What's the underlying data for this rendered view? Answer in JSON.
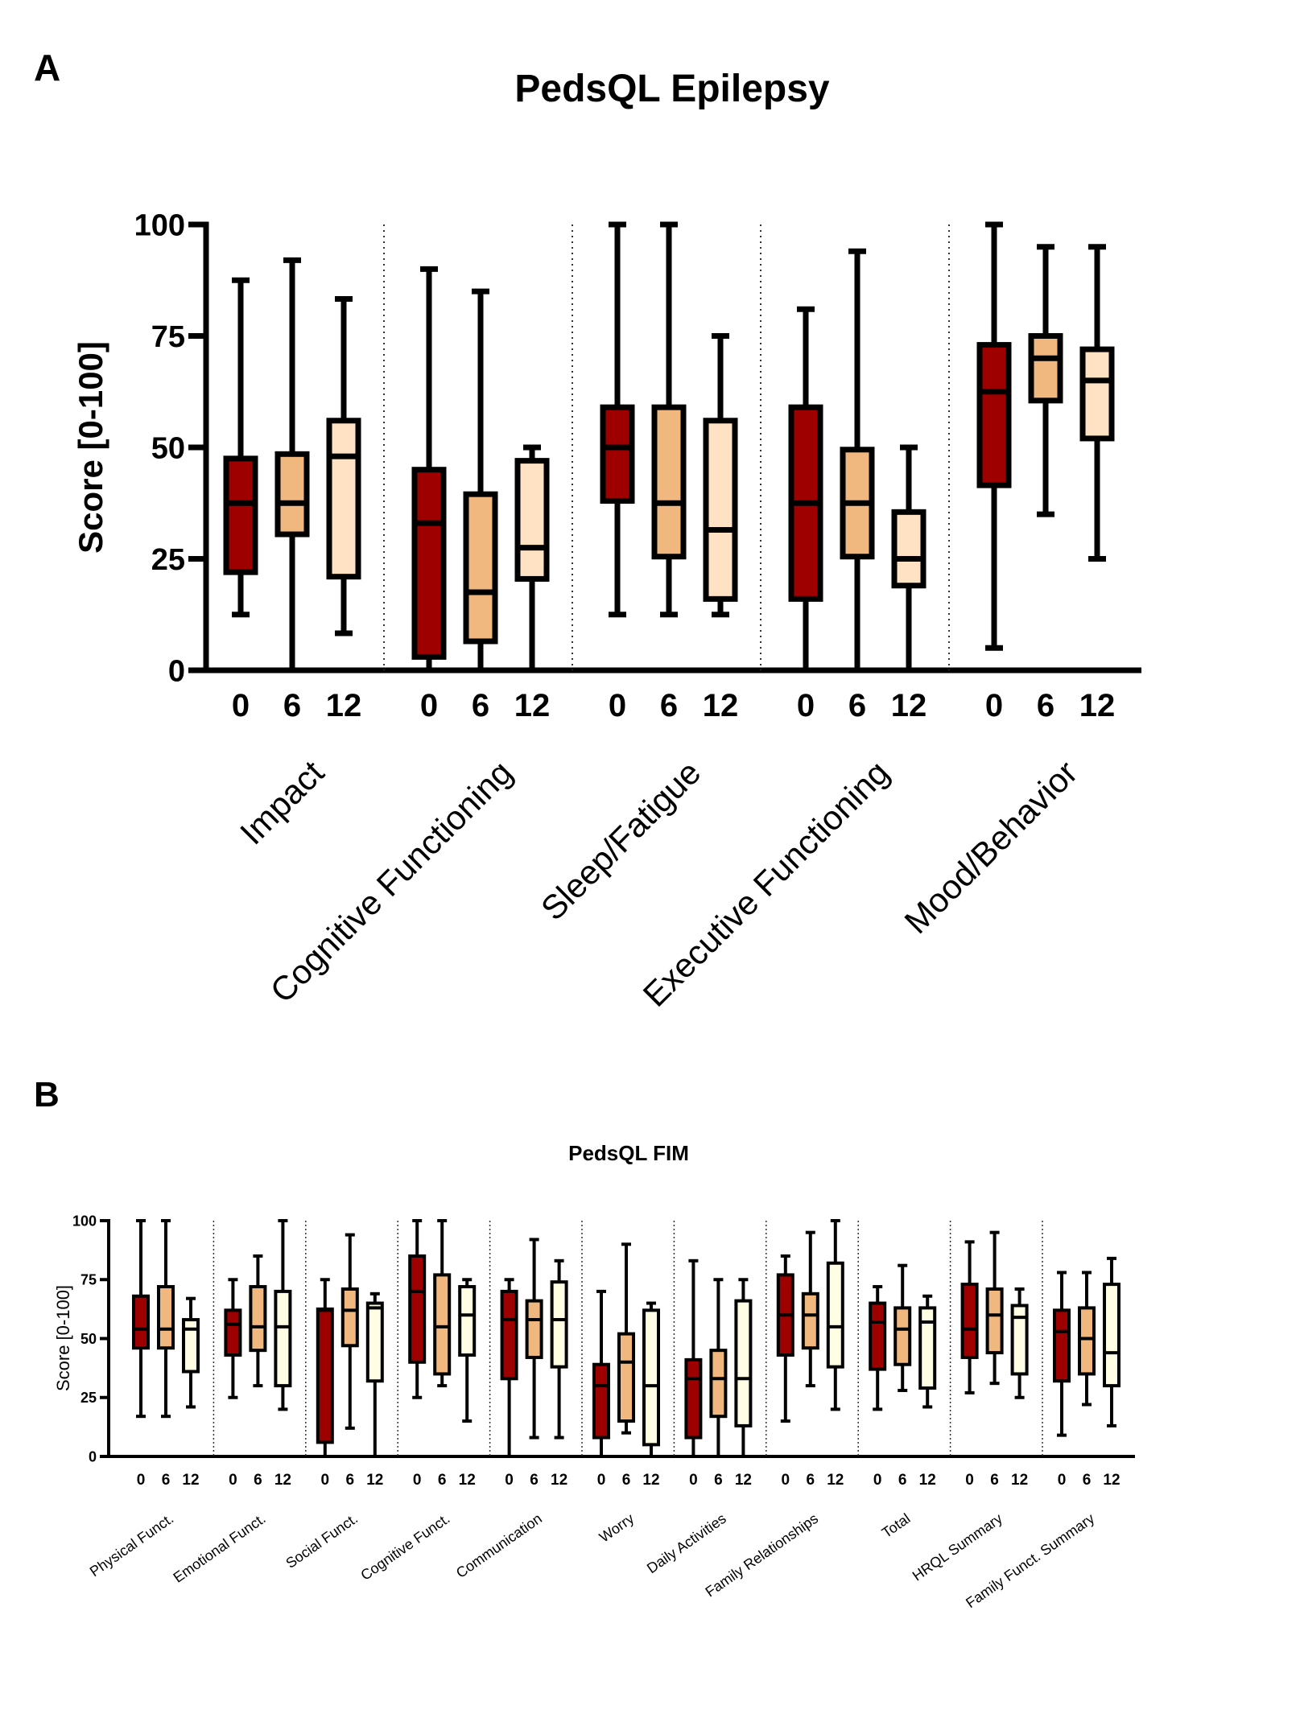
{
  "colors": {
    "t0": "#9E0000",
    "t6": "#F0B77E",
    "a12": "#FFE2C3",
    "b12": "#FFFDE3"
  },
  "chart_data": [
    {
      "panel_label": "A",
      "type": "box",
      "title": "PedsQL Epilepsy",
      "ylabel": "Score [0-100]",
      "ylim": [
        0,
        100
      ],
      "yticks": [
        "0",
        "25",
        "50",
        "75",
        "100"
      ],
      "timepoints": [
        "0",
        "6",
        "12"
      ],
      "grid": false,
      "categories": [
        {
          "name": "Impact",
          "boxes": [
            [
              12.5,
              22,
              37.5,
              47.5,
              87.5
            ],
            [
              0,
              30.5,
              37.5,
              48.5,
              92
            ],
            [
              8.3,
              21,
              48,
              56,
              83.3
            ]
          ]
        },
        {
          "name": "Cognitive Functioning",
          "boxes": [
            [
              0,
              3,
              33,
              45,
              90
            ],
            [
              0,
              6.5,
              17.5,
              39.5,
              85
            ],
            [
              0,
              20.5,
              27.5,
              47,
              50
            ]
          ]
        },
        {
          "name": "Sleep/Fatigue",
          "boxes": [
            [
              12.5,
              38,
              50,
              59,
              100
            ],
            [
              12.5,
              25.5,
              37.5,
              59,
              100
            ],
            [
              12.5,
              16,
              31.5,
              56,
              75
            ]
          ]
        },
        {
          "name": "Executive Functioning",
          "boxes": [
            [
              0,
              16,
              37.5,
              59,
              81
            ],
            [
              0,
              25.5,
              37.5,
              49.5,
              94
            ],
            [
              0,
              19,
              25,
              35.5,
              50
            ]
          ]
        },
        {
          "name": "Mood/Behavior",
          "boxes": [
            [
              5,
              41.5,
              62.5,
              73,
              100
            ],
            [
              35,
              60.5,
              70,
              75,
              95
            ],
            [
              25,
              52,
              65,
              72,
              95
            ]
          ]
        }
      ]
    },
    {
      "panel_label": "B",
      "type": "box",
      "title": "PedsQL FIM",
      "ylabel": "Score [0-100]",
      "ylim": [
        0,
        100
      ],
      "yticks": [
        "0",
        "25",
        "50",
        "75",
        "100"
      ],
      "timepoints": [
        "0",
        "6",
        "12"
      ],
      "grid": false,
      "categories": [
        {
          "name": "Physical Funct.",
          "boxes": [
            [
              17,
              46,
              54,
              68,
              100
            ],
            [
              17,
              46,
              54,
              72,
              100
            ],
            [
              21,
              36,
              54,
              58,
              67
            ]
          ]
        },
        {
          "name": "Emotional Funct.",
          "boxes": [
            [
              25,
              43,
              56,
              62,
              75
            ],
            [
              30,
              45,
              55,
              72,
              85
            ],
            [
              20,
              30,
              55,
              70,
              100
            ]
          ]
        },
        {
          "name": "Social Funct.",
          "boxes": [
            [
              0,
              6,
              62,
              62.5,
              75
            ],
            [
              12,
              47,
              62,
              71,
              94
            ],
            [
              0,
              32,
              63,
              65,
              69
            ]
          ]
        },
        {
          "name": "Cognitive Funct.",
          "boxes": [
            [
              25,
              40,
              70,
              85,
              100
            ],
            [
              30,
              35,
              55,
              77,
              100
            ],
            [
              15,
              43,
              60,
              72,
              75
            ]
          ]
        },
        {
          "name": "Communication",
          "boxes": [
            [
              0,
              33,
              58,
              70,
              75
            ],
            [
              8,
              42,
              58,
              66,
              92
            ],
            [
              8,
              38,
              58,
              74,
              83
            ]
          ]
        },
        {
          "name": "Worry",
          "boxes": [
            [
              0,
              8,
              30,
              39,
              70
            ],
            [
              10,
              15,
              40,
              52,
              90
            ],
            [
              0,
              5,
              30,
              62,
              65
            ]
          ]
        },
        {
          "name": "Daily  Activities",
          "boxes": [
            [
              0,
              8,
              33,
              41,
              83
            ],
            [
              0,
              17,
              33,
              45,
              75
            ],
            [
              0,
              13,
              33,
              66,
              75
            ]
          ]
        },
        {
          "name": "Family Relationships",
          "boxes": [
            [
              15,
              43,
              60,
              77,
              85
            ],
            [
              30,
              46,
              60,
              69,
              95
            ],
            [
              20,
              38,
              55,
              82,
              100
            ]
          ]
        },
        {
          "name": "Total",
          "boxes": [
            [
              20,
              37,
              57,
              65,
              72
            ],
            [
              28,
              39,
              54,
              63,
              81
            ],
            [
              21,
              29,
              57,
              63,
              68
            ]
          ]
        },
        {
          "name": "HRQL Summary",
          "boxes": [
            [
              27,
              42,
              54,
              73,
              91
            ],
            [
              31,
              44,
              60,
              71,
              95
            ],
            [
              25,
              35,
              59,
              64,
              71
            ]
          ]
        },
        {
          "name": "Family Funct. Summary",
          "boxes": [
            [
              9,
              32,
              53,
              62,
              78
            ],
            [
              22,
              35,
              50,
              63,
              78
            ],
            [
              13,
              30,
              44,
              73,
              84
            ]
          ]
        }
      ]
    }
  ]
}
